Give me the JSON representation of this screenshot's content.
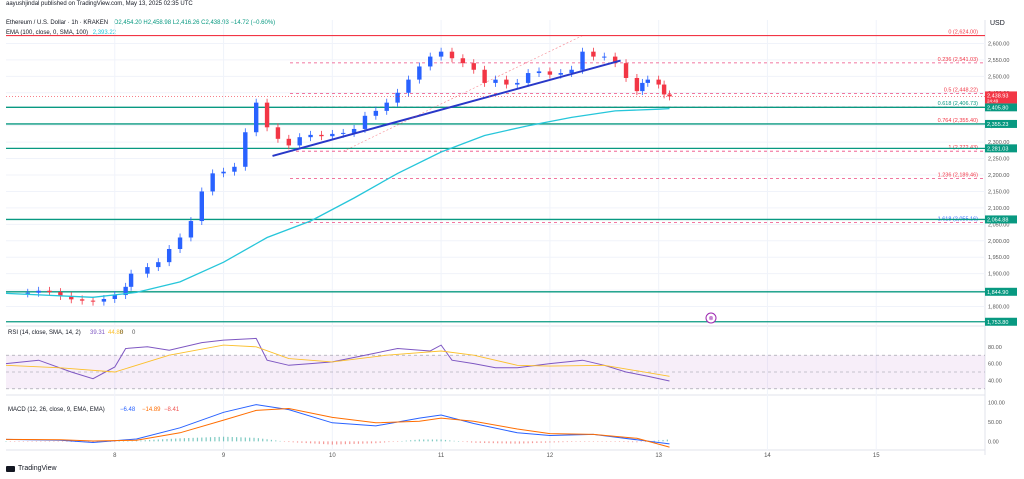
{
  "header": {
    "user_line": "aayushjindal published on TradingView.com, May 13, 2025 02:35 UTC",
    "symbol": "Ethereum / U.S. Dollar · 1h · KRAKEN",
    "ohlc": "O2,454.20  H2,458.98  L2,416.26  C2,438.93  −14.72 (−0.60%)",
    "ema_label": "EMA (100, close, 0, SMA, 100)",
    "ema_value": "2,393.22",
    "currency": "USD"
  },
  "logo_text": "TradingView",
  "chart_data": [
    {
      "type": "candlestick",
      "title": "Ethereum / U.S. Dollar · 1h · KRAKEN",
      "ylim": [
        1750,
        2650
      ],
      "y_ticks": [
        "2,600.00",
        "2,550.00",
        "2,500.00",
        "2,450.00",
        "2,350.00",
        "2,300.00",
        "2,250.00",
        "2,200.00",
        "2,150.00",
        "2,100.00",
        "2,050.00",
        "2,000.00",
        "1,950.00",
        "1,900.00",
        "1,850.00",
        "1,800.00"
      ],
      "y_tick_values": [
        2600,
        2550,
        2500,
        2450,
        2350,
        2300,
        2250,
        2200,
        2150,
        2100,
        2050,
        2000,
        1950,
        1900,
        1850,
        1800
      ],
      "x_ticks": [
        "8",
        "9",
        "10",
        "11",
        "12",
        "13",
        "14",
        "15"
      ],
      "x_tick_values": [
        8,
        9,
        10,
        11,
        12,
        13,
        14,
        15
      ],
      "xlim": [
        7,
        16
      ],
      "close_path": [
        [
          7.0,
          1840
        ],
        [
          7.2,
          1842
        ],
        [
          7.3,
          1848
        ],
        [
          7.4,
          1844
        ],
        [
          7.5,
          1832
        ],
        [
          7.6,
          1822
        ],
        [
          7.7,
          1818
        ],
        [
          7.8,
          1815
        ],
        [
          7.9,
          1823
        ],
        [
          8.0,
          1835
        ],
        [
          8.1,
          1860
        ],
        [
          8.15,
          1900
        ],
        [
          8.3,
          1920
        ],
        [
          8.4,
          1935
        ],
        [
          8.5,
          1975
        ],
        [
          8.6,
          2010
        ],
        [
          8.7,
          2060
        ],
        [
          8.8,
          2150
        ],
        [
          8.9,
          2205
        ],
        [
          9.0,
          2210
        ],
        [
          9.1,
          2225
        ],
        [
          9.2,
          2330
        ],
        [
          9.3,
          2420
        ],
        [
          9.4,
          2345
        ],
        [
          9.5,
          2310
        ],
        [
          9.6,
          2290
        ],
        [
          9.7,
          2315
        ],
        [
          9.8,
          2322
        ],
        [
          9.9,
          2318
        ],
        [
          10.0,
          2325
        ],
        [
          10.1,
          2328
        ],
        [
          10.2,
          2340
        ],
        [
          10.3,
          2380
        ],
        [
          10.4,
          2395
        ],
        [
          10.5,
          2420
        ],
        [
          10.6,
          2450
        ],
        [
          10.7,
          2490
        ],
        [
          10.8,
          2530
        ],
        [
          10.9,
          2560
        ],
        [
          11.0,
          2575
        ],
        [
          11.1,
          2555
        ],
        [
          11.2,
          2540
        ],
        [
          11.3,
          2520
        ],
        [
          11.4,
          2480
        ],
        [
          11.5,
          2490
        ],
        [
          11.6,
          2475
        ],
        [
          11.7,
          2480
        ],
        [
          11.8,
          2510
        ],
        [
          11.9,
          2515
        ],
        [
          12.0,
          2505
        ],
        [
          12.1,
          2510
        ],
        [
          12.2,
          2520
        ],
        [
          12.3,
          2575
        ],
        [
          12.4,
          2560
        ],
        [
          12.5,
          2560
        ],
        [
          12.6,
          2540
        ],
        [
          12.7,
          2495
        ],
        [
          12.8,
          2455
        ],
        [
          12.85,
          2480
        ],
        [
          12.9,
          2490
        ],
        [
          13.0,
          2475
        ],
        [
          13.05,
          2445
        ],
        [
          13.1,
          2438.93
        ]
      ],
      "ema_path": [
        [
          7.0,
          1840
        ],
        [
          7.8,
          1828
        ],
        [
          8.2,
          1843
        ],
        [
          8.6,
          1875
        ],
        [
          9.0,
          1935
        ],
        [
          9.4,
          2010
        ],
        [
          9.8,
          2060
        ],
        [
          10.2,
          2130
        ],
        [
          10.6,
          2205
        ],
        [
          11.0,
          2270
        ],
        [
          11.4,
          2320
        ],
        [
          11.8,
          2350
        ],
        [
          12.2,
          2375
        ],
        [
          12.6,
          2395
        ],
        [
          13.0,
          2400
        ],
        [
          13.1,
          2402
        ]
      ],
      "trendline": [
        [
          9.45,
          2258
        ],
        [
          12.65,
          2548
        ]
      ],
      "fib_levels": [
        {
          "label": "0 (2,624.00)",
          "value": 2624
        },
        {
          "label": "0.236 (2,541.03)",
          "value": 2541.03
        },
        {
          "label": "0.5 (2,448.22)",
          "value": 2448.22
        },
        {
          "label": "0.618 (2,406.73)",
          "value": 2406.73
        },
        {
          "label": "0.764 (2,355.40)",
          "value": 2355.4
        },
        {
          "label": "1 (2,272.43)",
          "value": 2272.43
        },
        {
          "label": "1.236 (2,189.46)",
          "value": 2189.46
        },
        {
          "label": "1.618 (2,055.16)",
          "value": 2055.16
        }
      ],
      "horizontal_levels": [
        {
          "label": "2,405.80",
          "value": 2405.8
        },
        {
          "label": "2,355.23",
          "value": 2355.23
        },
        {
          "label": "2,281.03",
          "value": 2281.03
        },
        {
          "label": "2,064.88",
          "value": 2064.88
        },
        {
          "label": "1,844.90",
          "value": 1844.9
        },
        {
          "label": "1,753.80",
          "value": 1753.8
        }
      ],
      "price_tag": {
        "label": "2,438.93",
        "sub": "24:49",
        "value": 2438.93
      },
      "colors": {
        "up": "#2962ff",
        "down": "#f23645",
        "ema": "#26c6da",
        "trend": "#2838c8",
        "level": "#089981",
        "fib": "#e91e63"
      }
    },
    {
      "type": "line",
      "title": "RSI (14, close, SMA, 14, 2)",
      "legend_values": [
        "39.31",
        "44.88",
        "0",
        "0"
      ],
      "ylim": [
        25,
        100
      ],
      "y_ticks": [
        "80.00",
        "60.00",
        "40.00"
      ],
      "y_tick_values": [
        80,
        60,
        40
      ],
      "band": [
        30,
        70
      ],
      "series": [
        {
          "values": [
            [
              7.0,
              60
            ],
            [
              7.3,
              64
            ],
            [
              7.6,
              50
            ],
            [
              7.8,
              42
            ],
            [
              8.0,
              56
            ],
            [
              8.1,
              78
            ],
            [
              8.3,
              80
            ],
            [
              8.5,
              76
            ],
            [
              8.8,
              85
            ],
            [
              9.0,
              88
            ],
            [
              9.3,
              90
            ],
            [
              9.4,
              64
            ],
            [
              9.6,
              58
            ],
            [
              9.8,
              60
            ],
            [
              10.0,
              62
            ],
            [
              10.3,
              70
            ],
            [
              10.6,
              78
            ],
            [
              10.9,
              75
            ],
            [
              11.0,
              82
            ],
            [
              11.1,
              64
            ],
            [
              11.3,
              60
            ],
            [
              11.5,
              55
            ],
            [
              11.7,
              55
            ],
            [
              12.0,
              60
            ],
            [
              12.3,
              64
            ],
            [
              12.5,
              58
            ],
            [
              12.7,
              50
            ],
            [
              12.9,
              45
            ],
            [
              13.1,
              39.31
            ]
          ]
        },
        {
          "values": [
            [
              7.0,
              58
            ],
            [
              7.5,
              55
            ],
            [
              8.0,
              50
            ],
            [
              8.5,
              70
            ],
            [
              9.0,
              82
            ],
            [
              9.3,
              80
            ],
            [
              9.6,
              66
            ],
            [
              10.0,
              62
            ],
            [
              10.5,
              70
            ],
            [
              11.0,
              75
            ],
            [
              11.3,
              70
            ],
            [
              11.7,
              58
            ],
            [
              12.0,
              57
            ],
            [
              12.5,
              58
            ],
            [
              13.1,
              44.88
            ]
          ]
        }
      ]
    },
    {
      "type": "line",
      "title": "MACD (12, 26, close, 9, EMA, EMA)",
      "legend_values": [
        "−6.48",
        "−14.89",
        "−8.41"
      ],
      "ylim": [
        -12,
        112
      ],
      "y_ticks": [
        "100.00",
        "50.00",
        "0.00"
      ],
      "y_tick_values": [
        100,
        50,
        0
      ],
      "series": [
        {
          "values": [
            [
              7.0,
              5
            ],
            [
              7.5,
              3
            ],
            [
              7.8,
              -3
            ],
            [
              8.2,
              6
            ],
            [
              8.6,
              35
            ],
            [
              9.0,
              75
            ],
            [
              9.3,
              95
            ],
            [
              9.6,
              82
            ],
            [
              10.0,
              48
            ],
            [
              10.4,
              40
            ],
            [
              10.8,
              60
            ],
            [
              11.0,
              68
            ],
            [
              11.3,
              46
            ],
            [
              11.7,
              22
            ],
            [
              12.0,
              15
            ],
            [
              12.4,
              18
            ],
            [
              12.8,
              4
            ],
            [
              13.1,
              -6.48
            ]
          ]
        },
        {
          "values": [
            [
              7.0,
              5
            ],
            [
              7.5,
              4
            ],
            [
              7.8,
              1
            ],
            [
              8.2,
              3
            ],
            [
              8.6,
              22
            ],
            [
              9.0,
              55
            ],
            [
              9.3,
              80
            ],
            [
              9.6,
              85
            ],
            [
              10.0,
              62
            ],
            [
              10.4,
              48
            ],
            [
              10.8,
              52
            ],
            [
              11.0,
              60
            ],
            [
              11.3,
              52
            ],
            [
              11.7,
              32
            ],
            [
              12.0,
              20
            ],
            [
              12.4,
              18
            ],
            [
              12.8,
              8
            ],
            [
              13.1,
              -14.89
            ]
          ]
        }
      ]
    }
  ],
  "event_marker": "⊗"
}
